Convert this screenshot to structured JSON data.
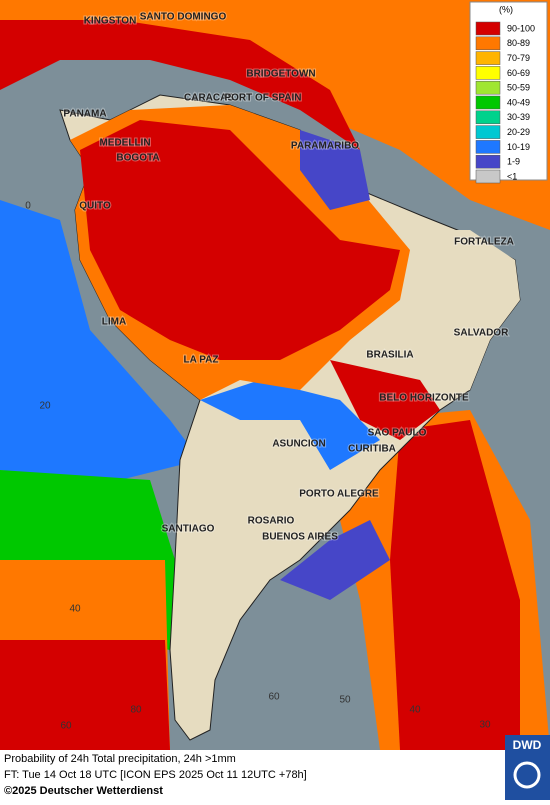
{
  "legend": {
    "title": "(%)",
    "items": [
      {
        "label": "90-100",
        "color": "#d40000"
      },
      {
        "label": "80-89",
        "color": "#ff7800"
      },
      {
        "label": "70-79",
        "color": "#ffb400"
      },
      {
        "label": "60-69",
        "color": "#ffff00"
      },
      {
        "label": "50-59",
        "color": "#a0e632"
      },
      {
        "label": "40-49",
        "color": "#00c800"
      },
      {
        "label": "30-39",
        "color": "#00d28c"
      },
      {
        "label": "20-29",
        "color": "#00c8d2"
      },
      {
        "label": "10-19",
        "color": "#1e78ff"
      },
      {
        "label": "1-9",
        "color": "#4646c8"
      },
      {
        "label": "<1",
        "color": "#c8c8c8"
      }
    ]
  },
  "cities": [
    "KINGSTON",
    "SANTO DOMINGO",
    "BRIDGETOWN",
    "CARACAS",
    "PORT OF SPAIN",
    "PANAMA",
    "MEDELLIN",
    "BOGOTA",
    "PARAMARIBO",
    "QUITO",
    "FORTALEZA",
    "LIMA",
    "SALVADOR",
    "BRASILIA",
    "LA PAZ",
    "BELO HORIZONTE",
    "SAO PAULO",
    "ASUNCION",
    "CURITIBA",
    "PORTO ALEGRE",
    "ROSARIO",
    "SANTIAGO",
    "BUENOS AIRES"
  ],
  "grid_labels": [
    "0",
    "20",
    "40",
    "80",
    "60",
    "60",
    "50",
    "40",
    "30"
  ],
  "footer": {
    "line1": "Probability of 24h Total precipitation, 24h >1mm",
    "line2": "FT: Tue 14 Oct 18 UTC [ICON EPS 2025 Oct 11 12UTC +78h]",
    "copyright": "©2025 Deutscher Wetterdienst"
  },
  "logo": "DWD"
}
